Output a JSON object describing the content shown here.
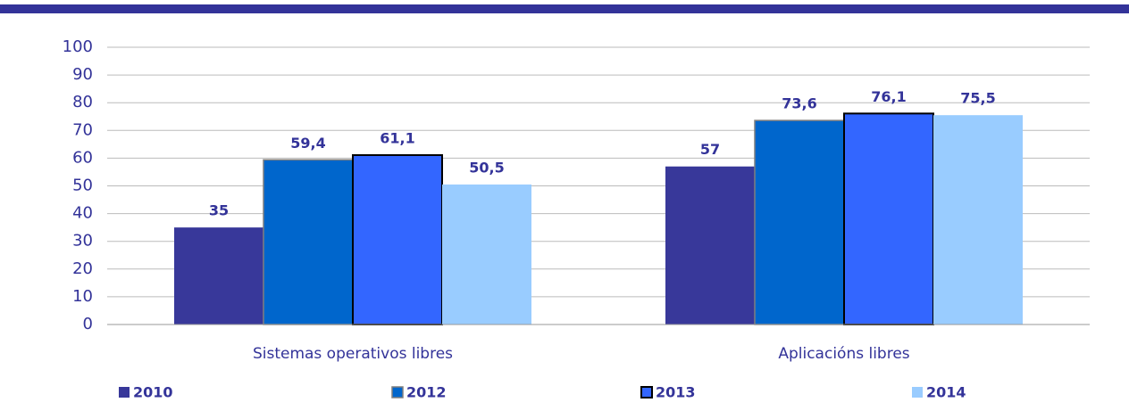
{
  "chart_data": {
    "type": "bar",
    "categories": [
      "Sistemas operativos libres",
      "Aplicacións libres"
    ],
    "series": [
      {
        "name": "2010",
        "color": "#38389a",
        "values": [
          35,
          57
        ],
        "value_labels": [
          "35",
          "57"
        ]
      },
      {
        "name": "2012",
        "color": "#0066cc",
        "edgecolor": "#7f7f7f",
        "values": [
          59.4,
          73.6
        ],
        "value_labels": [
          "59,4",
          "73,6"
        ]
      },
      {
        "name": "2013",
        "color": "#3366ff",
        "edgecolor": "#000000",
        "values": [
          61.1,
          76.1
        ],
        "value_labels": [
          "61,1",
          "76,1"
        ]
      },
      {
        "name": "2014",
        "color": "#99ccff",
        "values": [
          50.5,
          75.5
        ],
        "value_labels": [
          "50,5",
          "75,5"
        ]
      }
    ],
    "ylim": [
      0,
      100
    ],
    "yticks": [
      0,
      10,
      20,
      30,
      40,
      50,
      60,
      70,
      80,
      90,
      100
    ],
    "grid": true,
    "legend": "bottom"
  }
}
